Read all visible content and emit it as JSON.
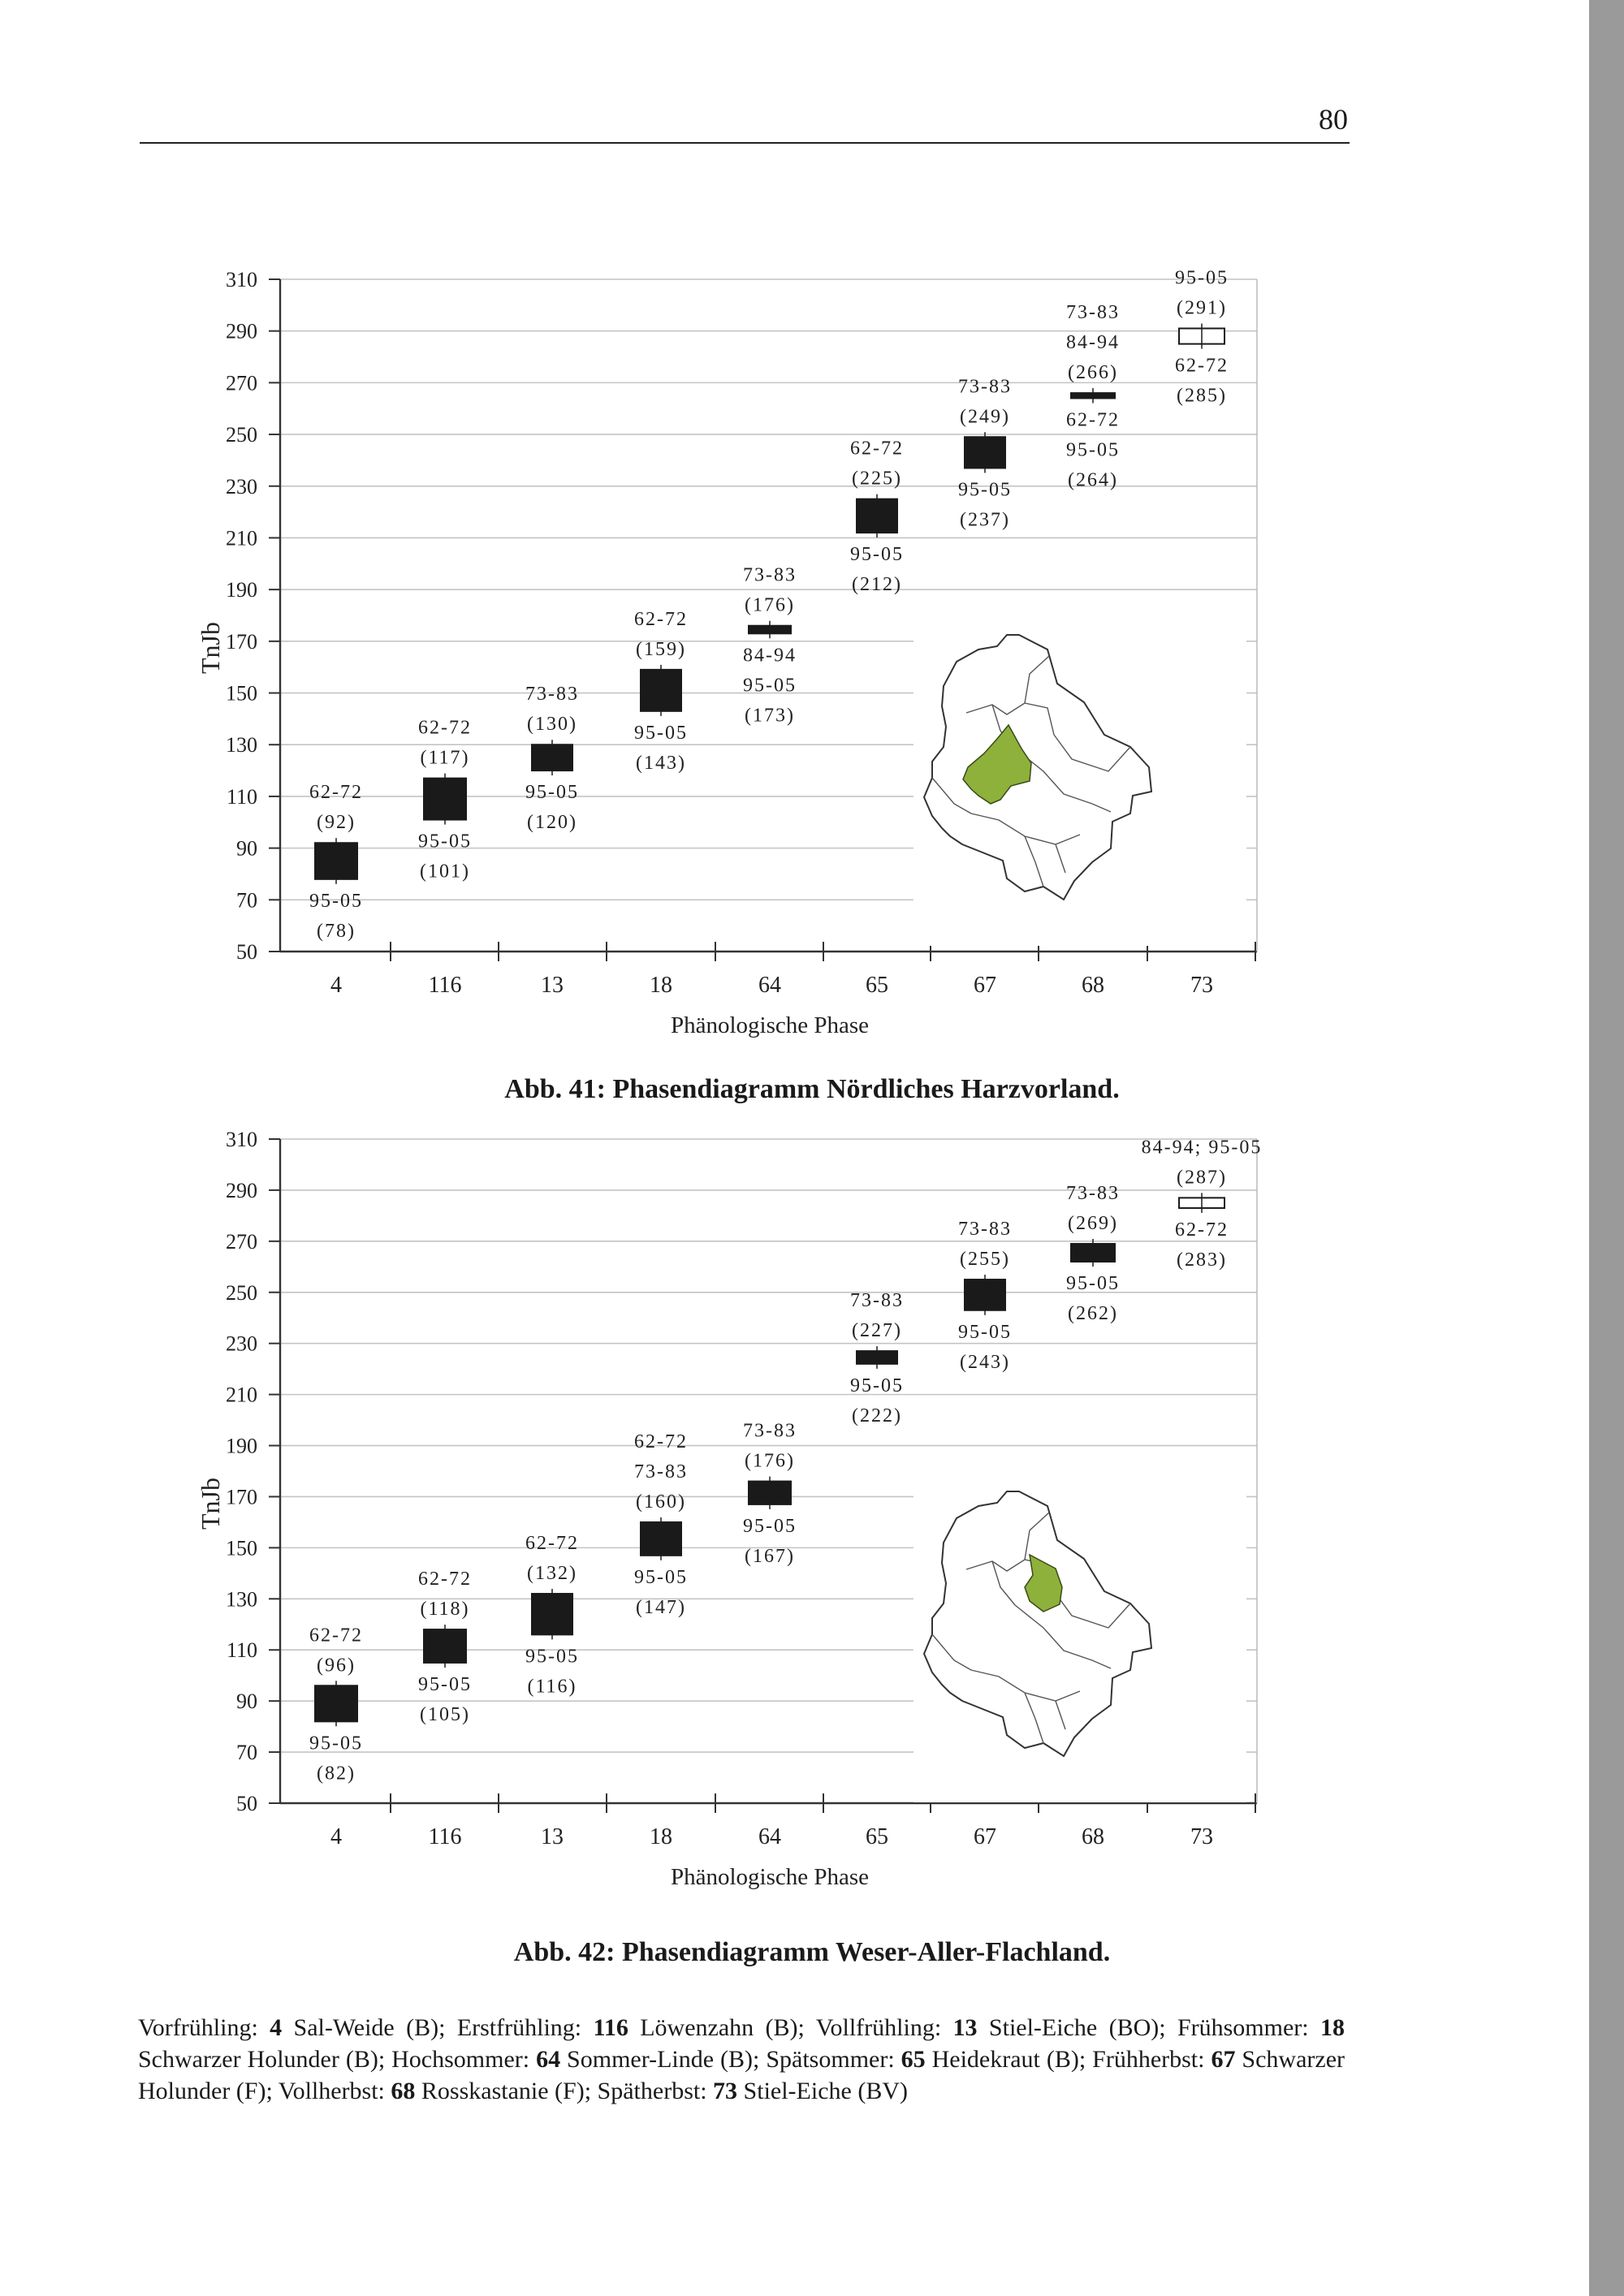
{
  "page": {
    "number": "80"
  },
  "chart_data": [
    {
      "type": "box",
      "title": "Abb. 41: Phasendiagramm Nördliches Harzvorland.",
      "xlabel": "Phänologische Phase",
      "ylabel": "TnJb",
      "ylim": [
        50,
        310
      ],
      "yticks": [
        "310",
        "290",
        "270",
        "250",
        "230",
        "210",
        "190",
        "170",
        "150",
        "130",
        "110",
        "90",
        "70",
        "50"
      ],
      "categories": [
        "4",
        "116",
        "13",
        "18",
        "64",
        "65",
        "67",
        "68",
        "73"
      ],
      "boxes": [
        {
          "phase": "4",
          "low": 78,
          "high": 92,
          "fill": "#1a1a1a",
          "top_label": "62-72",
          "top_value": "(92)",
          "bottom_label": "95-05",
          "bottom_value": "(78)"
        },
        {
          "phase": "116",
          "low": 101,
          "high": 117,
          "fill": "#1a1a1a",
          "top_label": "62-72",
          "top_value": "(117)",
          "bottom_label": "95-05",
          "bottom_value": "(101)"
        },
        {
          "phase": "13",
          "low": 120,
          "high": 130,
          "fill": "#1a1a1a",
          "top_label": "73-83",
          "top_value": "(130)",
          "bottom_label": "95-05",
          "bottom_value": "(120)"
        },
        {
          "phase": "18",
          "low": 143,
          "high": 159,
          "fill": "#1a1a1a",
          "top_label": "62-72",
          "top_value": "(159)",
          "bottom_label": "95-05",
          "bottom_value": "(143)"
        },
        {
          "phase": "64",
          "low": 173,
          "high": 176,
          "fill": "#1a1a1a",
          "top_label": "73-83",
          "top_value": "(176)",
          "bottom_label": "84-94\n95-05",
          "bottom_value": "(173)"
        },
        {
          "phase": "65",
          "low": 212,
          "high": 225,
          "fill": "#1a1a1a",
          "top_label": "62-72",
          "top_value": "(225)",
          "bottom_label": "95-05",
          "bottom_value": "(212)"
        },
        {
          "phase": "67",
          "low": 237,
          "high": 249,
          "fill": "#1a1a1a",
          "top_label": "73-83",
          "top_value": "(249)",
          "bottom_label": "95-05",
          "bottom_value": "(237)"
        },
        {
          "phase": "68",
          "low": 264,
          "high": 266,
          "fill": "#1a1a1a",
          "top_label": "73-83\n84-94",
          "top_value": "(266)",
          "bottom_label": "62-72\n95-05",
          "bottom_value": "(264)"
        },
        {
          "phase": "73",
          "low": 285,
          "high": 291,
          "fill": "#ffffff",
          "top_label": "95-05",
          "top_value": "(291)",
          "bottom_label": "62-72",
          "bottom_value": "(285)"
        }
      ],
      "map": {
        "highlight_region": "west"
      }
    },
    {
      "type": "box",
      "title": "Abb. 42: Phasendiagramm Weser-Aller-Flachland.",
      "xlabel": "Phänologische Phase",
      "ylabel": "TnJb",
      "ylim": [
        50,
        310
      ],
      "yticks": [
        "310",
        "290",
        "270",
        "250",
        "230",
        "210",
        "190",
        "170",
        "150",
        "130",
        "110",
        "90",
        "70",
        "50"
      ],
      "categories": [
        "4",
        "116",
        "13",
        "18",
        "64",
        "65",
        "67",
        "68",
        "73"
      ],
      "boxes": [
        {
          "phase": "4",
          "low": 82,
          "high": 96,
          "fill": "#1a1a1a",
          "top_label": "62-72",
          "top_value": "(96)",
          "bottom_label": "95-05",
          "bottom_value": "(82)"
        },
        {
          "phase": "116",
          "low": 105,
          "high": 118,
          "fill": "#1a1a1a",
          "top_label": "62-72",
          "top_value": "(118)",
          "bottom_label": "95-05",
          "bottom_value": "(105)"
        },
        {
          "phase": "13",
          "low": 116,
          "high": 132,
          "fill": "#1a1a1a",
          "top_label": "62-72",
          "top_value": "(132)",
          "bottom_label": "95-05",
          "bottom_value": "(116)"
        },
        {
          "phase": "18",
          "low": 147,
          "high": 160,
          "fill": "#1a1a1a",
          "top_label": "62-72\n73-83",
          "top_value": "(160)",
          "bottom_label": "95-05",
          "bottom_value": "(147)"
        },
        {
          "phase": "64",
          "low": 167,
          "high": 176,
          "fill": "#1a1a1a",
          "top_label": "73-83",
          "top_value": "(176)",
          "bottom_label": "95-05",
          "bottom_value": "(167)"
        },
        {
          "phase": "65",
          "low": 222,
          "high": 227,
          "fill": "#1a1a1a",
          "top_label": "73-83",
          "top_value": "(227)",
          "bottom_label": "95-05",
          "bottom_value": "(222)"
        },
        {
          "phase": "67",
          "low": 243,
          "high": 255,
          "fill": "#1a1a1a",
          "top_label": "73-83",
          "top_value": "(255)",
          "bottom_label": "95-05",
          "bottom_value": "(243)"
        },
        {
          "phase": "68",
          "low": 262,
          "high": 269,
          "fill": "#1a1a1a",
          "top_label": "73-83",
          "top_value": "(269)",
          "bottom_label": "95-05",
          "bottom_value": "(262)"
        },
        {
          "phase": "73",
          "low": 283,
          "high": 287,
          "fill": "#ffffff",
          "top_label": "84-94; 95-05",
          "top_value": "(287)",
          "bottom_label": "62-72",
          "bottom_value": "(283)"
        }
      ],
      "map": {
        "highlight_region": "north-west"
      }
    }
  ],
  "legend": {
    "items": [
      {
        "season": "Vorfrühling:",
        "code": "4",
        "plant": "Sal-Weide (B);"
      },
      {
        "season": "Erstfrühling:",
        "code": "116",
        "plant": "Löwenzahn (B);"
      },
      {
        "season": "Vollfrühling:",
        "code": "13",
        "plant": "Stiel-Eiche (BO);"
      },
      {
        "season": "Frühsommer:",
        "code": "18",
        "plant": "Schwarzer Holunder (B);"
      },
      {
        "season": "Hochsommer:",
        "code": "64",
        "plant": "Sommer-Linde (B);"
      },
      {
        "season": "Spätsommer:",
        "code": "65",
        "plant": "Heidekraut (B);"
      },
      {
        "season": "Frühherbst:",
        "code": "67",
        "plant": "Schwarzer Holunder (F);"
      },
      {
        "season": "Vollherbst:",
        "code": "68",
        "plant": "Rosskastanie (F);"
      },
      {
        "season": "Spätherbst:",
        "code": "73",
        "plant": "Stiel-Eiche (BV)"
      }
    ]
  },
  "colors": {
    "box_fill": "#1a1a1a",
    "map_highlight": "#8db13a",
    "grid": "#bdbdbd"
  }
}
